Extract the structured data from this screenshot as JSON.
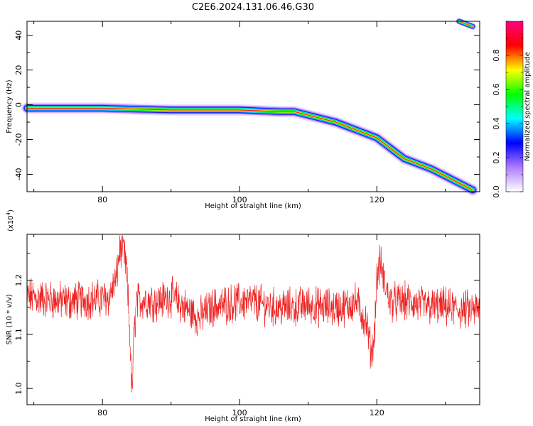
{
  "title": "C2E6.2024.131.06.46.G30",
  "chart_data": [
    {
      "type": "heatmap",
      "xlabel": "Height of straight line (km)",
      "ylabel": "Frequency (Hz)",
      "xlim": [
        69,
        135
      ],
      "ylim": [
        -50,
        48
      ],
      "x_ticks": [
        80,
        100,
        120
      ],
      "y_ticks": [
        -40,
        -20,
        0,
        20,
        40
      ],
      "grid": false,
      "ridge": {
        "x": [
          69,
          75,
          80,
          85,
          90,
          95,
          100,
          103,
          106,
          108,
          110,
          112,
          114,
          116,
          118,
          120,
          122,
          124,
          126,
          128,
          130,
          132,
          134
        ],
        "frequency": [
          -2,
          -2,
          -2,
          -2.5,
          -3,
          -3,
          -3,
          -3.5,
          -4,
          -4,
          -6,
          -8,
          -10,
          -13,
          -16,
          -19,
          -25,
          -31,
          -34,
          -37,
          -41,
          -45,
          -49
        ]
      },
      "ridge_top_segment": {
        "x": [
          132,
          134
        ],
        "frequency": [
          48,
          45
        ]
      },
      "colorbar": {
        "label": "Normalized spectral amplitude",
        "range": [
          0.0,
          1.0
        ],
        "ticks": [
          "0.0",
          "0.2",
          "0.4",
          "0.6",
          "0.8"
        ],
        "colors": [
          "#ffffff",
          "#b07cff",
          "#0000ff",
          "#00ffff",
          "#00ff00",
          "#ffff00",
          "#ff0000",
          "#ff0080"
        ]
      }
    },
    {
      "type": "line",
      "xlabel": "Height of straight line (km)",
      "ylabel": "SNR (10 * v/v)",
      "y_multiplier": "(x10",
      "y_multiplier_exp": "4",
      "y_multiplier_close": ")",
      "xlim": [
        69,
        135
      ],
      "ylim": [
        0.97,
        1.285
      ],
      "x_ticks": [
        80,
        100,
        120
      ],
      "y_ticks": [
        "1.0",
        "1.1",
        "1.2"
      ],
      "y_tick_values": [
        1.0,
        1.1,
        1.2
      ],
      "series": [
        {
          "color": "#ee2222",
          "x": [
            69,
            72,
            75,
            78,
            80,
            81,
            82,
            82.5,
            83,
            83.5,
            84,
            84.3,
            84.6,
            85,
            86,
            88,
            90,
            92,
            94,
            95,
            96,
            98,
            100,
            102,
            105,
            108,
            110,
            112,
            115,
            117,
            118.5,
            119.2,
            119.6,
            120,
            120.5,
            121,
            122,
            124,
            126,
            128,
            130,
            132,
            134,
            135
          ],
          "y": [
            1.17,
            1.165,
            1.16,
            1.165,
            1.165,
            1.17,
            1.2,
            1.255,
            1.26,
            1.22,
            1.1,
            0.985,
            1.1,
            1.16,
            1.165,
            1.16,
            1.17,
            1.15,
            1.13,
            1.14,
            1.15,
            1.155,
            1.16,
            1.16,
            1.15,
            1.15,
            1.155,
            1.15,
            1.15,
            1.16,
            1.12,
            1.065,
            1.09,
            1.2,
            1.235,
            1.2,
            1.16,
            1.16,
            1.155,
            1.15,
            1.15,
            1.145,
            1.145,
            1.145
          ]
        }
      ]
    }
  ]
}
